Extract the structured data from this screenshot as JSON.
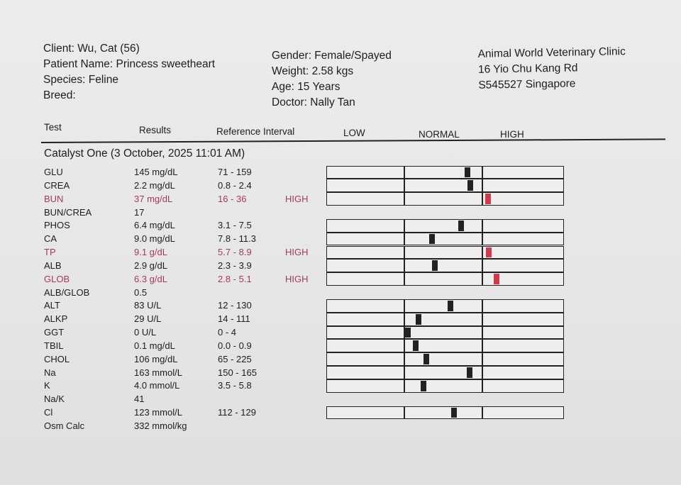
{
  "patient": {
    "client": "Client: Wu, Cat (56)",
    "patient_name": "Patient Name: Princess sweetheart",
    "species": "Species: Feline",
    "breed": "Breed:",
    "gender": "Gender: Female/Spayed",
    "weight": "Weight: 2.58 kgs",
    "age": "Age: 15 Years",
    "doctor": "Doctor: Nally Tan"
  },
  "clinic": {
    "name": "Animal World Veterinary Clinic",
    "address1": "16 Yio Chu Kang Rd",
    "address2": "S545527 Singapore"
  },
  "columns": {
    "test": "Test",
    "results": "Results",
    "reference": "Reference Interval",
    "low": "LOW",
    "normal": "NORMAL",
    "high": "HIGH"
  },
  "section_title": "Catalyst One (3 October, 2025 11:01 AM)",
  "colors": {
    "abnormal_text": "#a23c55",
    "high_marker": "#d23a4a",
    "marker": "#222222"
  },
  "rows": [
    {
      "test": "GLU",
      "result": "145 mg/dL",
      "ref": "71 - 159",
      "flag": "",
      "graph": true
    },
    {
      "test": "CREA",
      "result": "2.2 mg/dL",
      "ref": "0.8 - 2.4",
      "flag": "",
      "graph": true
    },
    {
      "test": "BUN",
      "result": "37 mg/dL",
      "ref": "16 - 36",
      "flag": "HIGH",
      "graph": true
    },
    {
      "test": "BUN/CREA",
      "result": "17",
      "ref": "",
      "flag": "",
      "graph": false
    },
    {
      "test": "PHOS",
      "result": "6.4 mg/dL",
      "ref": "3.1 - 7.5",
      "flag": "",
      "graph": true
    },
    {
      "test": "CA",
      "result": "9.0 mg/dL",
      "ref": "7.8 - 11.3",
      "flag": "",
      "graph": true
    },
    {
      "test": "TP",
      "result": "9.1 g/dL",
      "ref": "5.7 - 8.9",
      "flag": "HIGH",
      "graph": true
    },
    {
      "test": "ALB",
      "result": "2.9 g/dL",
      "ref": "2.3 - 3.9",
      "flag": "",
      "graph": true
    },
    {
      "test": "GLOB",
      "result": "6.3 g/dL",
      "ref": "2.8 - 5.1",
      "flag": "HIGH",
      "graph": true
    },
    {
      "test": "ALB/GLOB",
      "result": "0.5",
      "ref": "",
      "flag": "",
      "graph": false
    },
    {
      "test": "ALT",
      "result": "83 U/L",
      "ref": "12 - 130",
      "flag": "",
      "graph": true
    },
    {
      "test": "ALKP",
      "result": "29 U/L",
      "ref": "14 - 111",
      "flag": "",
      "graph": true
    },
    {
      "test": "GGT",
      "result": "0 U/L",
      "ref": "0 - 4",
      "flag": "",
      "graph": true
    },
    {
      "test": "TBIL",
      "result": "0.1 mg/dL",
      "ref": "0.0 - 0.9",
      "flag": "",
      "graph": true
    },
    {
      "test": "CHOL",
      "result": "106 mg/dL",
      "ref": "65 - 225",
      "flag": "",
      "graph": true
    },
    {
      "test": "Na",
      "result": "163 mmol/L",
      "ref": "150 - 165",
      "flag": "",
      "graph": true
    },
    {
      "test": "K",
      "result": "4.0 mmol/L",
      "ref": "3.5 - 5.8",
      "flag": "",
      "graph": true
    },
    {
      "test": "Na/K",
      "result": "41",
      "ref": "",
      "flag": "",
      "graph": false
    },
    {
      "test": "Cl",
      "result": "123 mmol/L",
      "ref": "112 - 129",
      "flag": "",
      "graph": true
    },
    {
      "test": "Osm Calc",
      "result": "332 mmol/kg",
      "ref": "",
      "flag": "",
      "graph": false
    }
  ]
}
